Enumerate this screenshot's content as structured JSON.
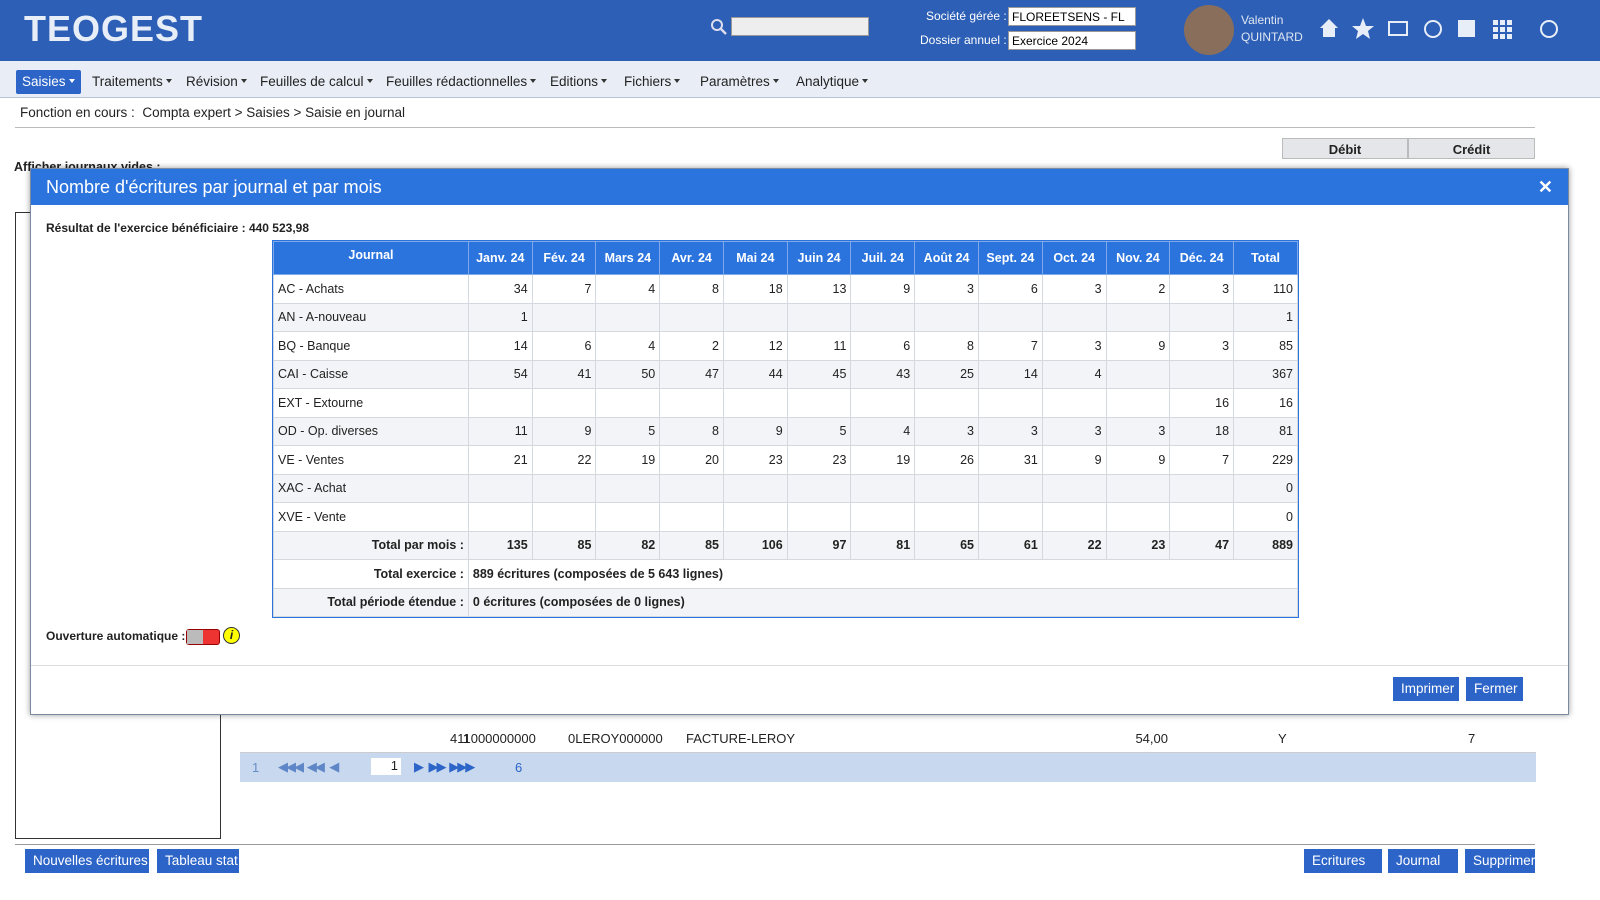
{
  "header": {
    "logo": "TEOGEST",
    "company_label": "Société gérée :",
    "company": "FLOREETSENS - FL",
    "year_label": "Dossier annuel :",
    "year": "Exercice 2024",
    "user_first": "Valentin",
    "user_last": "QUINTARD"
  },
  "menu": [
    "Saisies",
    "Traitements",
    "Révision",
    "Feuilles de calcul",
    "Feuilles rédactionnelles",
    "Editions",
    "Fichiers",
    "Paramètres",
    "Analytique"
  ],
  "breadcrumb": {
    "label": "Fonction en cours :",
    "path": "Compta expert > Saisies > Saisie en journal"
  },
  "background": {
    "empty_journals_label": "Afficher journaux vides :",
    "debit": "Débit",
    "credit": "Crédit",
    "row": [
      "1",
      "411000000000",
      "0LEROY000000",
      "FACTURE-LEROY",
      "54,00",
      "Y",
      "7"
    ],
    "pagination": {
      "first": "1",
      "current": "1",
      "last": "6"
    }
  },
  "footer_buttons": {
    "left": [
      "Nouvelles écritures",
      "Tableau stat"
    ],
    "right": [
      "Ecritures",
      "Journal",
      "Supprimer"
    ]
  },
  "modal": {
    "title": "Nombre d'écritures par journal et par mois",
    "result": "Résultat de l'exercice bénéficiaire : 440 523,98",
    "table": {
      "header": [
        "Journal",
        "Janv. 24",
        "Fév. 24",
        "Mars 24",
        "Avr. 24",
        "Mai 24",
        "Juin 24",
        "Juil. 24",
        "Août 24",
        "Sept. 24",
        "Oct. 24",
        "Nov. 24",
        "Déc. 24",
        "Total"
      ],
      "rows": [
        {
          "journal": "AC - Achats",
          "values": [
            34,
            7,
            4,
            8,
            18,
            13,
            9,
            3,
            6,
            3,
            2,
            3,
            110
          ]
        },
        {
          "journal": "AN - A-nouveau",
          "values": [
            1,
            null,
            null,
            null,
            null,
            null,
            null,
            null,
            null,
            null,
            null,
            null,
            1
          ]
        },
        {
          "journal": "BQ - Banque",
          "values": [
            14,
            6,
            4,
            2,
            12,
            11,
            6,
            8,
            7,
            3,
            9,
            3,
            85
          ]
        },
        {
          "journal": "CAI - Caisse",
          "values": [
            54,
            41,
            50,
            47,
            44,
            45,
            43,
            25,
            14,
            4,
            null,
            null,
            367
          ]
        },
        {
          "journal": "EXT - Extourne",
          "values": [
            null,
            null,
            null,
            null,
            null,
            null,
            null,
            null,
            null,
            null,
            null,
            16,
            16
          ]
        },
        {
          "journal": "OD - Op. diverses",
          "values": [
            11,
            9,
            5,
            8,
            9,
            5,
            4,
            3,
            3,
            3,
            3,
            18,
            81
          ]
        },
        {
          "journal": "VE - Ventes",
          "values": [
            21,
            22,
            19,
            20,
            23,
            23,
            19,
            26,
            31,
            9,
            9,
            7,
            229
          ]
        },
        {
          "journal": "XAC - Achat",
          "values": [
            null,
            null,
            null,
            null,
            null,
            null,
            null,
            null,
            null,
            null,
            null,
            null,
            0
          ]
        },
        {
          "journal": "XVE - Vente",
          "values": [
            null,
            null,
            null,
            null,
            null,
            null,
            null,
            null,
            null,
            null,
            null,
            null,
            0
          ]
        }
      ],
      "month_totals": {
        "label": "Total par mois :",
        "values": [
          135,
          85,
          82,
          85,
          106,
          97,
          81,
          65,
          61,
          22,
          23,
          47,
          889
        ]
      },
      "total_exercise": {
        "label": "Total exercice :",
        "value": "889 écritures (composées de 5 643 lignes)"
      },
      "extended_total": {
        "label": "Total période étendue :",
        "value": "0 écritures (composées de 0 lignes)"
      }
    },
    "auto_open_label": "Ouverture automatique :",
    "buttons": [
      "Imprimer",
      "Fermer"
    ]
  }
}
